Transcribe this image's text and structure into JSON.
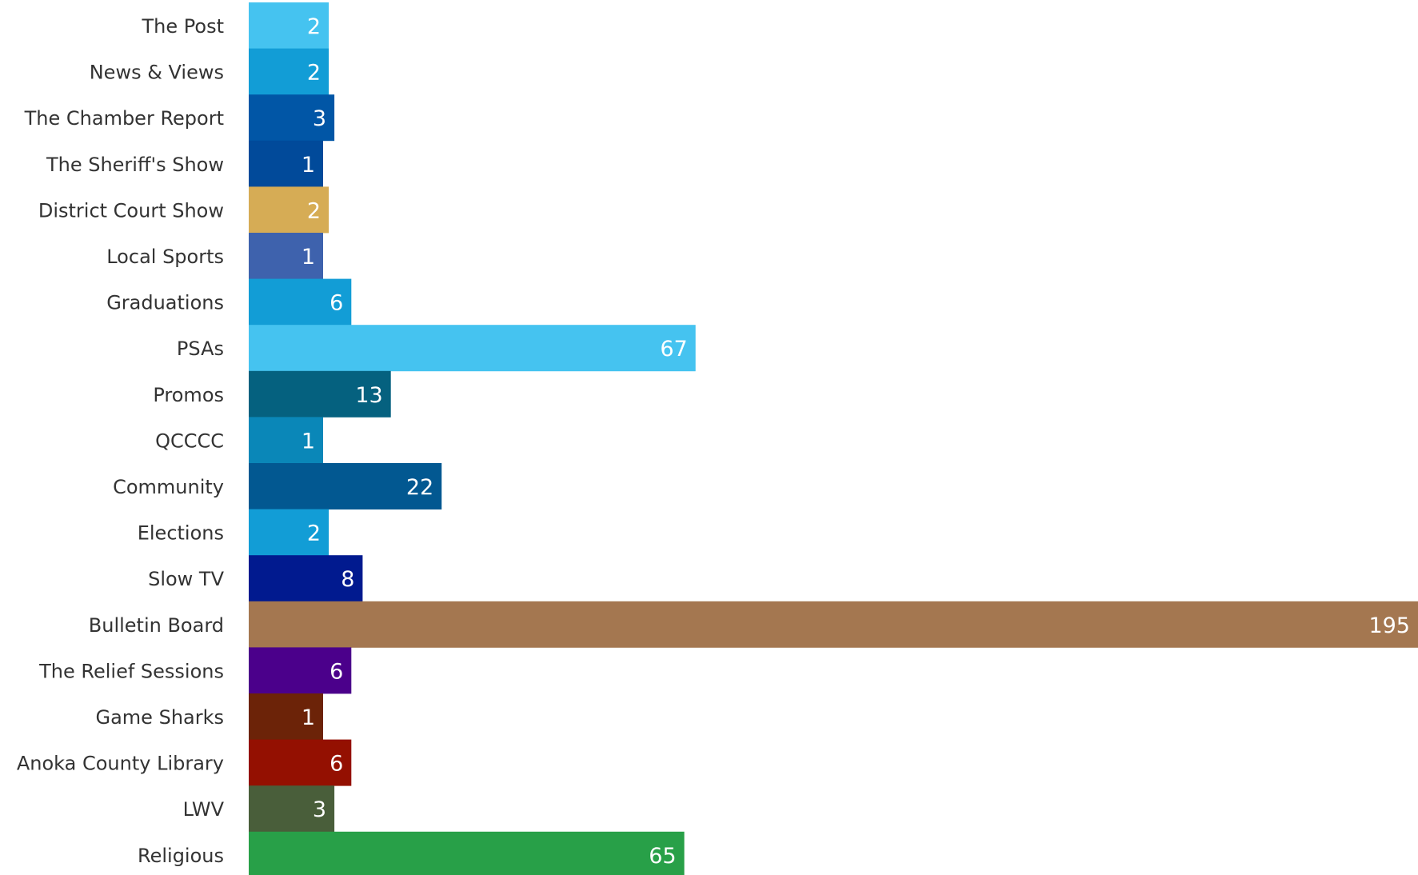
{
  "chart_data": {
    "type": "bar",
    "orientation": "horizontal",
    "title": "",
    "xlabel": "",
    "ylabel": "",
    "categories": [
      "The Post",
      "News & Views",
      "The Chamber Report",
      "The Sheriff's Show",
      "District Court Show",
      "Local Sports",
      "Graduations",
      "PSAs",
      "Promos",
      "QCCCC",
      "Community",
      "Elections",
      "Slow TV",
      "Bulletin Board",
      "The Relief Sessions",
      "Game Sharks",
      "Anoka County Library",
      "LWV",
      "Religious"
    ],
    "values": [
      2,
      2,
      3,
      1,
      2,
      1,
      6,
      67,
      13,
      1,
      22,
      2,
      8,
      195,
      6,
      1,
      6,
      3,
      65
    ],
    "value_labels": [
      "2",
      "2",
      "3",
      "1",
      "2",
      "1",
      "6",
      "67",
      "13",
      "1",
      "22",
      "2",
      "8",
      "195",
      "6",
      "1",
      "6",
      "3",
      "65"
    ],
    "colors": [
      "#45c3f0",
      "#129dd6",
      "#0156a6",
      "#014a9a",
      "#d6ac55",
      "#3e62ad",
      "#129dd6",
      "#45c3f0",
      "#05617f",
      "#0a87b8",
      "#025891",
      "#129dd6",
      "#011a8f",
      "#a47750",
      "#4b008b",
      "#6c2308",
      "#941001",
      "#495e3a",
      "#28a048"
    ],
    "grid": false,
    "legend": "none"
  }
}
